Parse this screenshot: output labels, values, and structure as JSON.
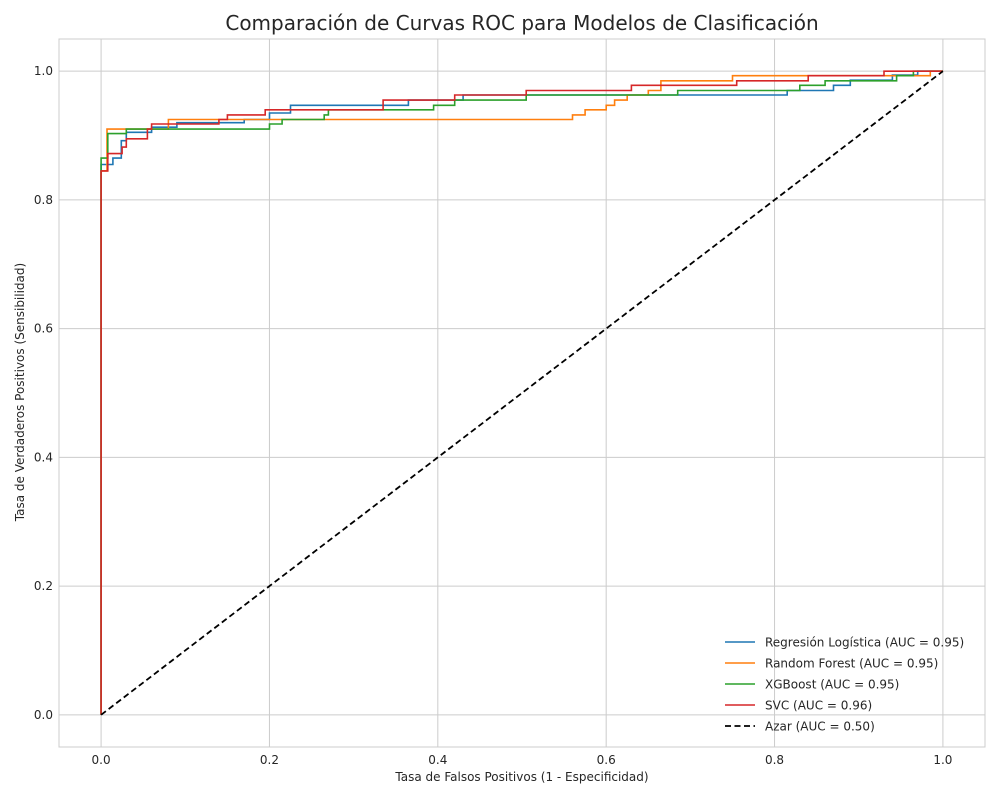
{
  "chart_data": {
    "type": "line",
    "title": "Comparación de Curvas ROC para Modelos de Clasificación",
    "xlabel": "Tasa de Falsos Positivos (1 - Especificidad)",
    "ylabel": "Tasa de Verdaderos Positivos (Sensibilidad)",
    "xlim": [
      -0.05,
      1.05
    ],
    "ylim": [
      -0.05,
      1.05
    ],
    "xticks": [
      0.0,
      0.2,
      0.4,
      0.6,
      0.8,
      1.0
    ],
    "yticks": [
      0.0,
      0.2,
      0.4,
      0.6,
      0.8,
      1.0
    ],
    "tick_labels_x": [
      "0.0",
      "0.2",
      "0.4",
      "0.6",
      "0.8",
      "1.0"
    ],
    "tick_labels_y": [
      "0.0",
      "0.2",
      "0.4",
      "0.6",
      "0.8",
      "1.0"
    ],
    "grid": true,
    "legend_position": "lower-right",
    "series": [
      {
        "name": "Regresión Logística (AUC = 0.95)",
        "color": "#1f77b4",
        "dash": false,
        "step": true,
        "points": [
          [
            0,
            0
          ],
          [
            0,
            0.855
          ],
          [
            0.014,
            0.855
          ],
          [
            0.014,
            0.865
          ],
          [
            0.024,
            0.865
          ],
          [
            0.024,
            0.892
          ],
          [
            0.03,
            0.892
          ],
          [
            0.03,
            0.905
          ],
          [
            0.06,
            0.905
          ],
          [
            0.06,
            0.913
          ],
          [
            0.09,
            0.913
          ],
          [
            0.09,
            0.92
          ],
          [
            0.17,
            0.92
          ],
          [
            0.17,
            0.925
          ],
          [
            0.2,
            0.925
          ],
          [
            0.2,
            0.935
          ],
          [
            0.225,
            0.935
          ],
          [
            0.225,
            0.947
          ],
          [
            0.365,
            0.947
          ],
          [
            0.365,
            0.955
          ],
          [
            0.43,
            0.955
          ],
          [
            0.43,
            0.963
          ],
          [
            0.815,
            0.963
          ],
          [
            0.815,
            0.97
          ],
          [
            0.87,
            0.97
          ],
          [
            0.87,
            0.978
          ],
          [
            0.89,
            0.978
          ],
          [
            0.89,
            0.986
          ],
          [
            0.94,
            0.986
          ],
          [
            0.94,
            0.994
          ],
          [
            0.97,
            0.994
          ],
          [
            0.97,
            1.0
          ],
          [
            1.0,
            1.0
          ]
        ]
      },
      {
        "name": "Random Forest (AUC = 0.95)",
        "color": "#ff7f0e",
        "dash": false,
        "step": true,
        "points": [
          [
            0,
            0
          ],
          [
            0,
            0.845
          ],
          [
            0.007,
            0.845
          ],
          [
            0.007,
            0.91
          ],
          [
            0.08,
            0.91
          ],
          [
            0.08,
            0.925
          ],
          [
            0.265,
            0.925
          ],
          [
            0.265,
            0.925
          ],
          [
            0.56,
            0.925
          ],
          [
            0.56,
            0.932
          ],
          [
            0.575,
            0.932
          ],
          [
            0.575,
            0.94
          ],
          [
            0.6,
            0.94
          ],
          [
            0.6,
            0.947
          ],
          [
            0.61,
            0.947
          ],
          [
            0.61,
            0.955
          ],
          [
            0.625,
            0.955
          ],
          [
            0.625,
            0.963
          ],
          [
            0.65,
            0.963
          ],
          [
            0.65,
            0.97
          ],
          [
            0.665,
            0.97
          ],
          [
            0.665,
            0.985
          ],
          [
            0.75,
            0.985
          ],
          [
            0.75,
            0.993
          ],
          [
            0.985,
            0.993
          ],
          [
            0.985,
            1.0
          ],
          [
            1.0,
            1.0
          ]
        ]
      },
      {
        "name": "XGBoost (AUC = 0.95)",
        "color": "#2ca02c",
        "dash": false,
        "step": true,
        "points": [
          [
            0,
            0
          ],
          [
            0,
            0.865
          ],
          [
            0.008,
            0.865
          ],
          [
            0.008,
            0.903
          ],
          [
            0.03,
            0.903
          ],
          [
            0.03,
            0.91
          ],
          [
            0.2,
            0.91
          ],
          [
            0.2,
            0.918
          ],
          [
            0.215,
            0.918
          ],
          [
            0.215,
            0.925
          ],
          [
            0.265,
            0.925
          ],
          [
            0.265,
            0.932
          ],
          [
            0.27,
            0.932
          ],
          [
            0.27,
            0.94
          ],
          [
            0.395,
            0.94
          ],
          [
            0.395,
            0.947
          ],
          [
            0.42,
            0.947
          ],
          [
            0.42,
            0.955
          ],
          [
            0.505,
            0.955
          ],
          [
            0.505,
            0.963
          ],
          [
            0.685,
            0.963
          ],
          [
            0.685,
            0.97
          ],
          [
            0.83,
            0.97
          ],
          [
            0.83,
            0.978
          ],
          [
            0.86,
            0.978
          ],
          [
            0.86,
            0.985
          ],
          [
            0.945,
            0.985
          ],
          [
            0.945,
            0.993
          ],
          [
            0.965,
            0.993
          ],
          [
            0.965,
            1.0
          ],
          [
            1.0,
            1.0
          ]
        ]
      },
      {
        "name": "SVC (AUC = 0.96)",
        "color": "#d62728",
        "dash": false,
        "step": true,
        "points": [
          [
            0,
            0
          ],
          [
            0,
            0.845
          ],
          [
            0.008,
            0.845
          ],
          [
            0.008,
            0.872
          ],
          [
            0.025,
            0.872
          ],
          [
            0.025,
            0.882
          ],
          [
            0.03,
            0.882
          ],
          [
            0.03,
            0.895
          ],
          [
            0.055,
            0.895
          ],
          [
            0.055,
            0.91
          ],
          [
            0.06,
            0.91
          ],
          [
            0.06,
            0.918
          ],
          [
            0.14,
            0.918
          ],
          [
            0.14,
            0.925
          ],
          [
            0.15,
            0.925
          ],
          [
            0.15,
            0.932
          ],
          [
            0.195,
            0.932
          ],
          [
            0.195,
            0.94
          ],
          [
            0.335,
            0.94
          ],
          [
            0.335,
            0.955
          ],
          [
            0.42,
            0.955
          ],
          [
            0.42,
            0.963
          ],
          [
            0.505,
            0.963
          ],
          [
            0.505,
            0.97
          ],
          [
            0.63,
            0.97
          ],
          [
            0.63,
            0.978
          ],
          [
            0.755,
            0.978
          ],
          [
            0.755,
            0.985
          ],
          [
            0.84,
            0.985
          ],
          [
            0.84,
            0.993
          ],
          [
            0.93,
            0.993
          ],
          [
            0.93,
            1.0
          ],
          [
            1.0,
            1.0
          ]
        ]
      },
      {
        "name": "Azar (AUC = 0.50)",
        "color": "#000000",
        "dash": true,
        "step": false,
        "points": [
          [
            0,
            0
          ],
          [
            1,
            1
          ]
        ]
      }
    ]
  }
}
